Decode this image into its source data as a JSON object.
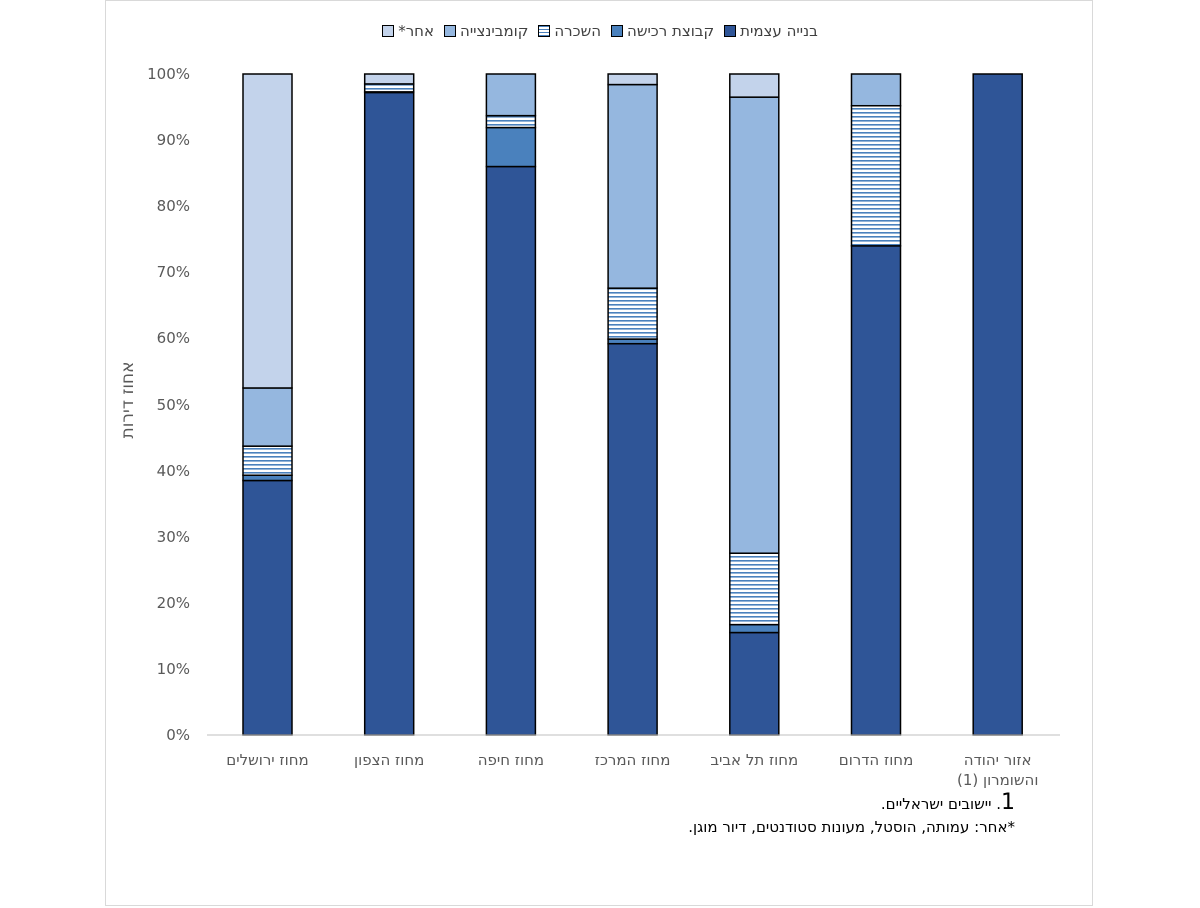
{
  "chart_data": {
    "type": "bar",
    "stacked": true,
    "ylabel": "אחוז דירות",
    "ylim": [
      0,
      100
    ],
    "yticks": [
      "0%",
      "10%",
      "20%",
      "30%",
      "40%",
      "50%",
      "60%",
      "70%",
      "80%",
      "90%",
      "100%"
    ],
    "categories": [
      "מחוז ירושלים",
      "מחוז הצפון",
      "מחוז חיפה",
      "מחוז המרכז",
      "מחוז תל אביב",
      "מחוז הדרום",
      "אזור יהודה והשומרון (1)"
    ],
    "series": [
      {
        "name": "בנייה עצמית",
        "color": "#2f5597",
        "pattern": "solid",
        "values": [
          38.5,
          97.2,
          86.0,
          59.2,
          15.5,
          74.0,
          100.0
        ]
      },
      {
        "name": "קבוצת רכישה",
        "color": "#4a81bd",
        "pattern": "solid",
        "values": [
          0.8,
          0.1,
          5.9,
          0.7,
          1.2,
          0.0,
          0.0
        ]
      },
      {
        "name": "השכרה",
        "color": "#4a81bd",
        "pattern": "horizontal-lines",
        "values": [
          4.4,
          1.2,
          1.8,
          7.7,
          10.8,
          21.2,
          0.0
        ]
      },
      {
        "name": "קומבינצייה",
        "color": "#95b7df",
        "pattern": "solid",
        "values": [
          8.8,
          0.0,
          6.3,
          30.8,
          69.0,
          4.8,
          0.0
        ]
      },
      {
        "name": "אחר*",
        "color": "#c3d3eb",
        "pattern": "solid",
        "values": [
          47.5,
          1.5,
          0.0,
          1.6,
          3.5,
          0.0,
          0.0
        ]
      }
    ],
    "legend_position": "top",
    "grid": false
  },
  "notes": {
    "note1_number": "1",
    "note1_text": ". יישובים ישראליים.",
    "note2_text": "*אחר: עמותה, הוסטל, מעונות סטודנטים, דיור מוגן."
  }
}
